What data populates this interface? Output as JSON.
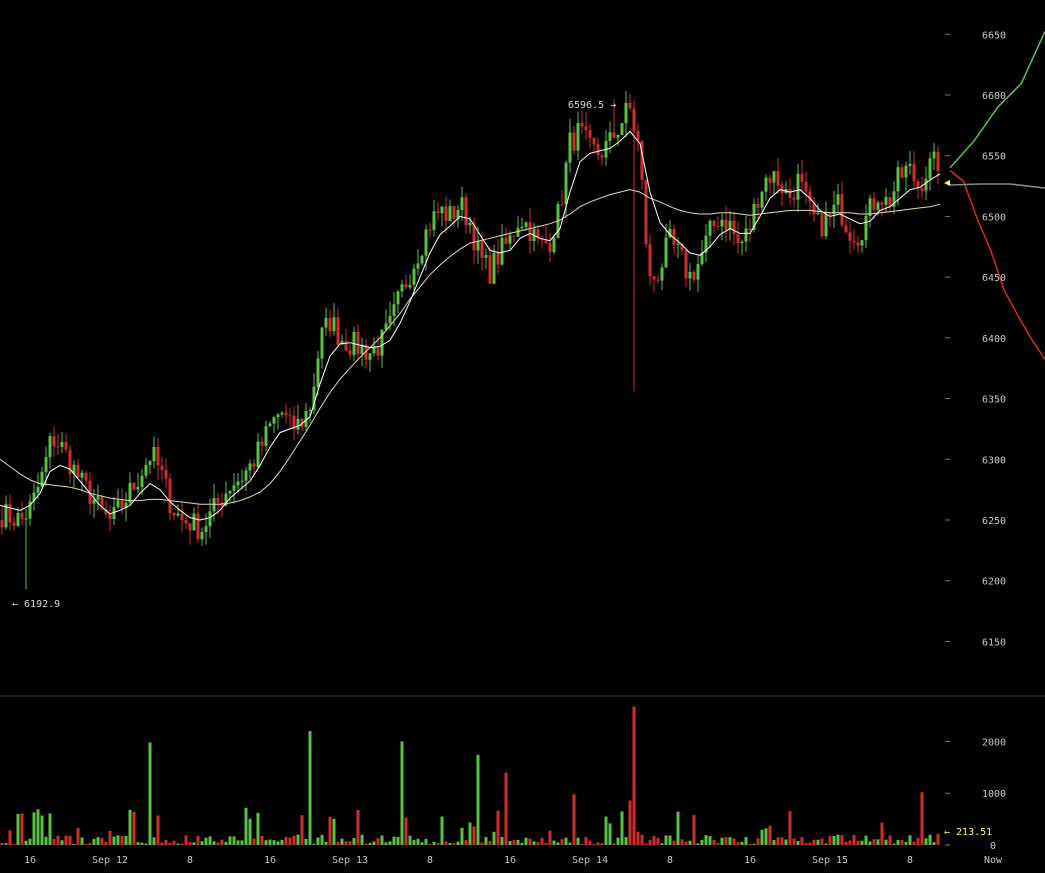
{
  "chart_data": {
    "type": "candlestick",
    "title": "",
    "price_axis": {
      "ylim": [
        6110,
        6670
      ],
      "ticks": [
        6150,
        6200,
        6250,
        6300,
        6350,
        6400,
        6450,
        6500,
        6550,
        6600,
        6650
      ]
    },
    "volume_axis": {
      "ylim": [
        0,
        2800
      ],
      "ticks": [
        0,
        1000,
        2000
      ]
    },
    "x_axis": {
      "labels": [
        "16",
        "Sep 12",
        "8",
        "16",
        "Sep 13",
        "8",
        "16",
        "Sep 14",
        "8",
        "16",
        "Sep 15",
        "8",
        "Now"
      ]
    },
    "annotations": {
      "low_label": "← 6192.9",
      "high_label": "6596.5 →",
      "last_volume_label": "← 213.51"
    },
    "key_points": {
      "low": 6192.9,
      "high": 6596.5,
      "last_volume": 213.51
    },
    "close_path": [
      6255,
      6252,
      6250,
      6262,
      6285,
      6318,
      6310,
      6295,
      6280,
      6270,
      6255,
      6248,
      6262,
      6275,
      6290,
      6305,
      6288,
      6262,
      6250,
      6248,
      6242,
      6255,
      6268,
      6280,
      6285,
      6295,
      6310,
      6328,
      6340,
      6325,
      6330,
      6345,
      6400,
      6415,
      6400,
      6395,
      6392,
      6388,
      6395,
      6410,
      6435,
      6455,
      6475,
      6495,
      6505,
      6500,
      6510,
      6495,
      6465,
      6455,
      6470,
      6480,
      6500,
      6490,
      6475,
      6480,
      6505,
      6560,
      6570,
      6555,
      6552,
      6560,
      6575,
      6590,
      6555,
      6445,
      6455,
      6480,
      6468,
      6450,
      6462,
      6485,
      6500,
      6495,
      6475,
      6488,
      6520,
      6535,
      6530,
      6515,
      6530,
      6505,
      6492,
      6498,
      6510,
      6490,
      6485,
      6502,
      6520,
      6510,
      6530,
      6540,
      6525,
      6540,
      6545
    ],
    "ma_fast": [
      6262,
      6260,
      6258,
      6262,
      6272,
      6290,
      6295,
      6292,
      6282,
      6272,
      6262,
      6255,
      6258,
      6262,
      6272,
      6280,
      6275,
      6265,
      6258,
      6252,
      6250,
      6252,
      6258,
      6268,
      6275,
      6282,
      6295,
      6310,
      6322,
      6325,
      6328,
      6335,
      6362,
      6385,
      6395,
      6396,
      6394,
      6392,
      6393,
      6398,
      6412,
      6430,
      6450,
      6470,
      6485,
      6492,
      6500,
      6498,
      6485,
      6472,
      6470,
      6472,
      6482,
      6486,
      6482,
      6480,
      6490,
      6520,
      6545,
      6552,
      6554,
      6556,
      6562,
      6570,
      6560,
      6520,
      6495,
      6485,
      6478,
      6470,
      6468,
      6475,
      6485,
      6490,
      6486,
      6486,
      6500,
      6515,
      6522,
      6520,
      6522,
      6515,
      6505,
      6500,
      6502,
      6498,
      6494,
      6496,
      6505,
      6508,
      6515,
      6522,
      6524,
      6530,
      6535
    ],
    "ma_slow": [
      6300,
      6294,
      6288,
      6283,
      6280,
      6279,
      6278,
      6277,
      6275,
      6272,
      6270,
      6268,
      6267,
      6266,
      6266,
      6267,
      6267,
      6266,
      6265,
      6264,
      6263,
      6263,
      6263,
      6264,
      6266,
      6269,
      6273,
      6280,
      6290,
      6302,
      6315,
      6328,
      6342,
      6355,
      6366,
      6375,
      6384,
      6392,
      6400,
      6410,
      6420,
      6432,
      6442,
      6452,
      6460,
      6467,
      6473,
      6478,
      6480,
      6482,
      6484,
      6486,
      6488,
      6490,
      6492,
      6494,
      6497,
      6502,
      6508,
      6512,
      6515,
      6518,
      6520,
      6522,
      6520,
      6515,
      6512,
      6508,
      6505,
      6503,
      6502,
      6502,
      6503,
      6503,
      6502,
      6501,
      6502,
      6503,
      6504,
      6505,
      6505,
      6505,
      6504,
      6503,
      6503,
      6503,
      6502,
      6502,
      6503,
      6504,
      6505,
      6506,
      6507,
      6508,
      6510
    ],
    "depth": {
      "bid_levels": [
        6538,
        6530,
        6500,
        6470,
        6440,
        6420,
        6400,
        6380
      ],
      "ask_levels": [
        6540,
        6560,
        6590,
        6610,
        6650
      ]
    }
  }
}
